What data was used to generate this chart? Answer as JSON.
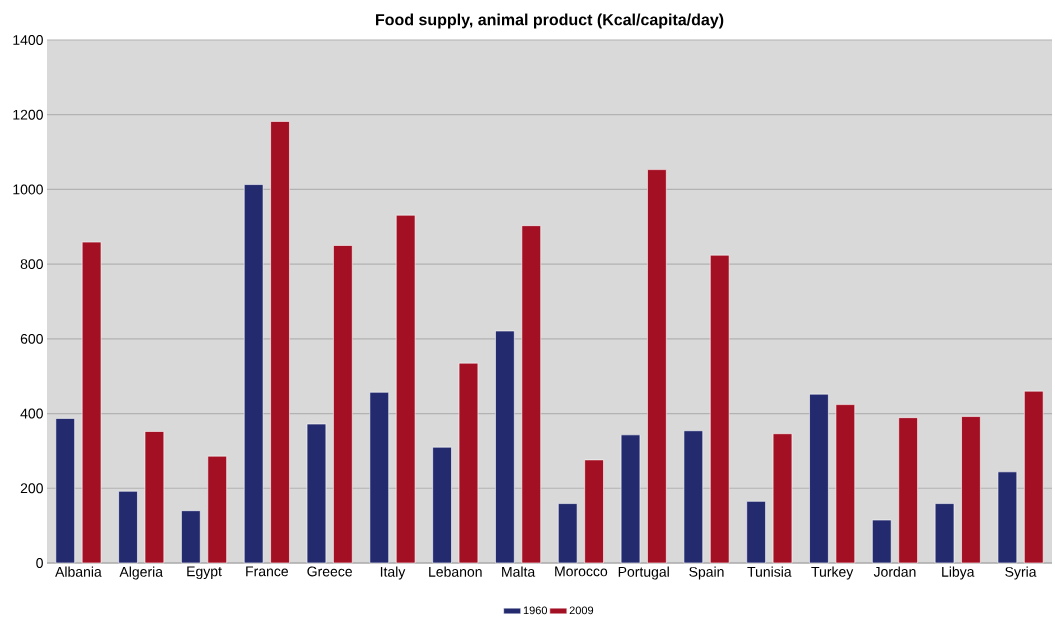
{
  "chart_data": {
    "type": "bar",
    "title": "Food supply, animal product (Kcal/capita/day)",
    "categories": [
      "Albania",
      "Algeria",
      "Egypt",
      "France",
      "Greece",
      "Italy",
      "Lebanon",
      "Malta",
      "Morocco",
      "Portugal",
      "Spain",
      "Tunisia",
      "Turkey",
      "Jordan",
      "Libya",
      "Syria"
    ],
    "series": [
      {
        "name": "1960",
        "color": "#232a6e",
        "values": [
          387,
          192,
          140,
          1013,
          372,
          457,
          310,
          621,
          159,
          343,
          354,
          165,
          452,
          115,
          159,
          244
        ]
      },
      {
        "name": "2009",
        "color": "#a31024",
        "values": [
          859,
          352,
          286,
          1182,
          850,
          931,
          535,
          903,
          276,
          1053,
          824,
          346,
          424,
          389,
          392,
          460
        ]
      }
    ],
    "ylim": [
      0,
      1400
    ],
    "yticks": [
      0,
      200,
      400,
      600,
      800,
      1000,
      1200,
      1400
    ],
    "grid": "y",
    "legend": "bottom"
  }
}
